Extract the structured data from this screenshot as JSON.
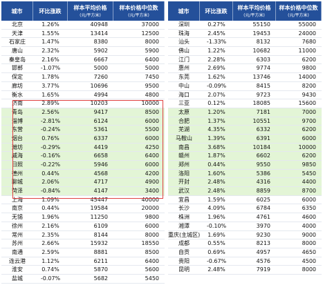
{
  "table": {
    "headers": [
      {
        "title": "城市"
      },
      {
        "title": "环比涨跌"
      },
      {
        "title": "样本平均价格",
        "sub": "(元/平方米)"
      },
      {
        "title": "样本价格中位数",
        "sub": "(元/平方米)"
      }
    ],
    "left": [
      [
        "北京",
        "1.26%",
        "40948",
        "37000"
      ],
      [
        "天津",
        "1.55%",
        "13414",
        "12500"
      ],
      [
        "石家庄",
        "1.47%",
        "8380",
        "8000"
      ],
      [
        "唐山",
        "2.32%",
        "5902",
        "5900"
      ],
      [
        "秦皇岛",
        "2.16%",
        "6667",
        "6400"
      ],
      [
        "邯郸",
        "-1.07%",
        "5000",
        "5000"
      ],
      [
        "保定",
        "1.78%",
        "7260",
        "7450"
      ],
      [
        "廊坊",
        "3.77%",
        "10696",
        "9500"
      ],
      [
        "衡水",
        "1.65%",
        "4994",
        "4800"
      ],
      [
        "济南",
        "2.89%",
        "10203",
        "10000"
      ],
      [
        "青岛",
        "2.56%",
        "9417",
        "8500"
      ],
      [
        "淄博",
        "-2.81%",
        "6124",
        "6000"
      ],
      [
        "东营",
        "-0.24%",
        "5361",
        "5500"
      ],
      [
        "烟台",
        "0.76%",
        "6337",
        "6000"
      ],
      [
        "潍坊",
        "-0.29%",
        "4419",
        "4250"
      ],
      [
        "威海",
        "-0.16%",
        "6658",
        "6400"
      ],
      [
        "日照",
        "-0.22%",
        "5946",
        "6000"
      ],
      [
        "德州",
        "0.44%",
        "4568",
        "4200"
      ],
      [
        "聊城",
        "2.06%",
        "4717",
        "4900"
      ],
      [
        "菏泽",
        "-0.84%",
        "4147",
        "3400"
      ],
      [
        "上海",
        "1.09%",
        "45447",
        "40000"
      ],
      [
        "南京",
        "0.44%",
        "19584",
        "20000"
      ],
      [
        "无锡",
        "1.96%",
        "11250",
        "9800"
      ],
      [
        "徐州",
        "2.16%",
        "6109",
        "6000"
      ],
      [
        "常州",
        "2.35%",
        "8144",
        "8000"
      ],
      [
        "苏州",
        "2.66%",
        "15932",
        "18550"
      ],
      [
        "南通",
        "2.59%",
        "8881",
        "8500"
      ],
      [
        "连云港",
        "1.12%",
        "6211",
        "6400"
      ],
      [
        "淮安",
        "0.74%",
        "5870",
        "5600"
      ],
      [
        "盐城",
        "-0.07%",
        "5682",
        "5450"
      ]
    ],
    "right": [
      [
        "深圳",
        "0.27%",
        "55150",
        "55000"
      ],
      [
        "珠海",
        "2.45%",
        "19453",
        "24000"
      ],
      [
        "汕头",
        "-1.33%",
        "8132",
        "7680"
      ],
      [
        "佛山",
        "1.22%",
        "10682",
        "11000"
      ],
      [
        "江门",
        "2.28%",
        "6303",
        "6200"
      ],
      [
        "惠州",
        "2.69%",
        "9774",
        "9800"
      ],
      [
        "东莞",
        "1.62%",
        "13746",
        "14000"
      ],
      [
        "中山",
        "-0.09%",
        "8415",
        "8200"
      ],
      [
        "海口",
        "2.07%",
        "9723",
        "9430"
      ],
      [
        "三亚",
        "0.12%",
        "18085",
        "15600"
      ],
      [
        "太原",
        "1.20%",
        "7181",
        "7000"
      ],
      [
        "合肥",
        "1.37%",
        "10551",
        "9700"
      ],
      [
        "芜湖",
        "4.35%",
        "6332",
        "6200"
      ],
      [
        "马鞍山",
        "1.39%",
        "6391",
        "6000"
      ],
      [
        "南昌",
        "3.68%",
        "10184",
        "10000"
      ],
      [
        "赣州",
        "1.87%",
        "6602",
        "6200"
      ],
      [
        "郑州",
        "0.44%",
        "9550",
        "9850"
      ],
      [
        "洛阳",
        "1.60%",
        "5386",
        "5450"
      ],
      [
        "开封",
        "2.48%",
        "4316",
        "4400"
      ],
      [
        "武汉",
        "2.48%",
        "8859",
        "8700"
      ],
      [
        "宜昌",
        "1.59%",
        "6025",
        "6000"
      ],
      [
        "长沙",
        "4.09%",
        "6784",
        "6350"
      ],
      [
        "株洲",
        "1.96%",
        "4761",
        "4600"
      ],
      [
        "湘潭",
        "-0.10%",
        "3970",
        "4000"
      ],
      [
        "重庆(主城区)",
        "1.69%",
        "9230",
        "9000"
      ],
      [
        "成都",
        "0.55%",
        "8213",
        "8000"
      ],
      [
        "自贡",
        "0.69%",
        "4957",
        "4650"
      ],
      [
        "贵阳",
        "-0.67%",
        "4576",
        "4500"
      ],
      [
        "昆明",
        "2.48%",
        "7919",
        "8000"
      ]
    ]
  }
}
